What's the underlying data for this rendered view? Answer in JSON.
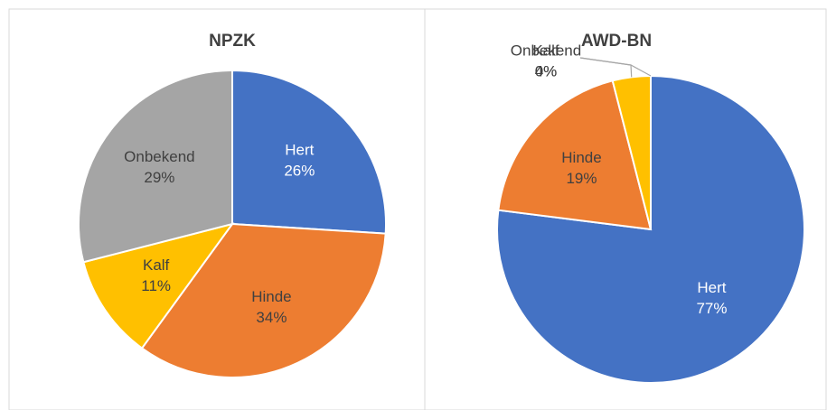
{
  "chart_data": [
    {
      "type": "pie",
      "title": "NPZK",
      "categories": [
        "Hert",
        "Hinde",
        "Kalf",
        "Onbekend"
      ],
      "values": [
        26,
        34,
        11,
        29
      ],
      "value_labels": [
        "26%",
        "34%",
        "11%",
        "29%"
      ],
      "colors": [
        "#4472c4",
        "#ed7d31",
        "#ffc000",
        "#a5a5a5"
      ]
    },
    {
      "type": "pie",
      "title": "AWD-BN",
      "categories": [
        "Hert",
        "Hinde",
        "Kalf",
        "Onbekend"
      ],
      "values": [
        77,
        19,
        4,
        0
      ],
      "value_labels": [
        "77%",
        "19%",
        "4%",
        "0%"
      ],
      "colors": [
        "#4472c4",
        "#ed7d31",
        "#ffc000",
        "#a5a5a5"
      ]
    }
  ]
}
